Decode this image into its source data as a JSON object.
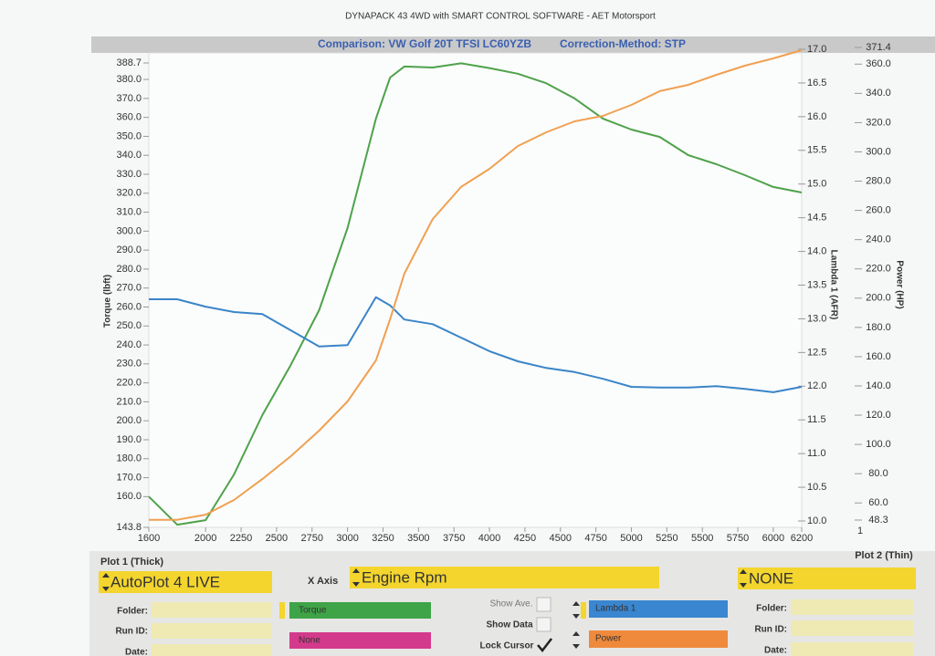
{
  "chart_data": {
    "type": "line",
    "title": "DYNAPACK 43 4WD with SMART CONTROL SOFTWARE - AET Motorsport",
    "subtitle": "Comparison: VW Golf 20T TFSI LC60YZB",
    "correction": "Correction-Method: STP",
    "y_label": "Torque (lbft)",
    "y2_label": "Lambda 1 (AFR)",
    "y3_label": "Power (HP)",
    "corner_label": "1",
    "x": [
      1600,
      1800,
      2000,
      2200,
      2400,
      2600,
      2800,
      3000,
      3200,
      3300,
      3400,
      3600,
      3800,
      4000,
      4200,
      4400,
      4600,
      4800,
      5000,
      5200,
      5400,
      5600,
      5800,
      6000,
      6200
    ],
    "xlim": [
      1600,
      6200
    ],
    "xticks": [
      1600,
      2000,
      2250,
      2500,
      2750,
      3000,
      3250,
      3500,
      3750,
      4000,
      4250,
      4500,
      4750,
      5000,
      5250,
      5500,
      5750,
      6000,
      6200
    ],
    "ylim": [
      143.8,
      388.7
    ],
    "yticks": [
      143.8,
      {
        "value": 160,
        "label": "160.0"
      },
      {
        "value": 170,
        "label": "170.0"
      },
      {
        "value": 180,
        "label": "180.0"
      },
      {
        "value": 190,
        "label": "190.0"
      },
      {
        "value": 200,
        "label": "200.0"
      },
      {
        "value": 210,
        "label": "210.0"
      },
      {
        "value": 220,
        "label": "220.0"
      },
      {
        "value": 230,
        "label": "230.0"
      },
      {
        "value": 240,
        "label": "240.0"
      },
      {
        "value": 250,
        "label": "250.0"
      },
      {
        "value": 260,
        "label": "260.0"
      },
      {
        "value": 270,
        "label": "270.0"
      },
      {
        "value": 280,
        "label": "280.0"
      },
      {
        "value": 290,
        "label": "290.0"
      },
      {
        "value": 300,
        "label": "300.0"
      },
      {
        "value": 310,
        "label": "310.0"
      },
      {
        "value": 320,
        "label": "320.0"
      },
      {
        "value": 330,
        "label": "330.0"
      },
      {
        "value": 340,
        "label": "340.0"
      },
      {
        "value": 350,
        "label": "350.0"
      },
      {
        "value": 360,
        "label": "360.0"
      },
      {
        "value": 370,
        "label": "370.0"
      },
      {
        "value": 380,
        "label": "380.0"
      },
      388.7
    ],
    "y2lim": [
      10,
      17
    ],
    "y2ticks": [
      {
        "value": 10,
        "label": "10.0"
      },
      10.5,
      {
        "value": 11,
        "label": "11.0"
      },
      11.5,
      {
        "value": 12,
        "label": "12.0"
      },
      12.5,
      {
        "value": 13,
        "label": "13.0"
      },
      13.5,
      {
        "value": 14,
        "label": "14.0"
      },
      14.5,
      {
        "value": 15,
        "label": "15.0"
      },
      15.5,
      {
        "value": 16,
        "label": "16.0"
      },
      16.5,
      {
        "value": 17,
        "label": "17.0"
      }
    ],
    "y3lim": [
      48.3,
      371.4
    ],
    "y3ticks": [
      48.3,
      {
        "value": 60,
        "label": "60.0"
      },
      {
        "value": 80,
        "label": "80.0"
      },
      {
        "value": 100,
        "label": "100.0"
      },
      {
        "value": 120,
        "label": "120.0"
      },
      {
        "value": 140,
        "label": "140.0"
      },
      {
        "value": 160,
        "label": "160.0"
      },
      {
        "value": 180,
        "label": "180.0"
      },
      {
        "value": 200,
        "label": "200.0"
      },
      {
        "value": 220,
        "label": "220.0"
      },
      {
        "value": 240,
        "label": "240.0"
      },
      {
        "value": 260,
        "label": "260.0"
      },
      {
        "value": 280,
        "label": "280.0"
      },
      {
        "value": 300,
        "label": "300.0"
      },
      {
        "value": 320,
        "label": "320.0"
      },
      {
        "value": 340,
        "label": "340.0"
      },
      {
        "value": 360,
        "label": "360.0"
      },
      371.4
    ],
    "series": [
      {
        "name": "Torque",
        "color": "#4ea24a",
        "axis": "y",
        "values": [
          160,
          145.2,
          147.6,
          171.7,
          203,
          229.4,
          258.3,
          301.6,
          359.3,
          381,
          386.8,
          386.3,
          388.5,
          386,
          383,
          378,
          370,
          359.3,
          353.6,
          349.7,
          340.1,
          335.3,
          329.5,
          323.3,
          320.4
        ]
      },
      {
        "name": "Lambda 1",
        "color": "#3a85c8",
        "axis": "y2",
        "values": [
          13.29,
          13.29,
          13.18,
          13.1,
          13.07,
          12.83,
          12.59,
          12.61,
          13.32,
          13.2,
          12.99,
          12.92,
          12.72,
          12.52,
          12.37,
          12.27,
          12.21,
          12.11,
          11.99,
          11.98,
          11.98,
          12.0,
          11.96,
          11.91,
          11.99
        ]
      },
      {
        "name": "Power",
        "color": "#f0a050",
        "axis": "y3",
        "values": [
          48.5,
          48.5,
          52,
          62,
          76.3,
          91.9,
          109.4,
          129.4,
          157.4,
          185.5,
          216.7,
          254.1,
          276,
          288.4,
          304,
          313.4,
          320.9,
          324.6,
          332.1,
          341.5,
          345.8,
          352.7,
          358.9,
          363.9,
          369.5
        ]
      }
    ]
  },
  "panel": {
    "plot1_title": "Plot 1 (Thick)",
    "plot1_value": "AutoPlot 4 LIVE",
    "x_axis_label": "X Axis",
    "x_axis_value": "Engine Rpm",
    "plot2_title": "Plot 2 (Thin)",
    "plot2_value": "NONE",
    "folder": "Folder:",
    "run_id": "Run ID:",
    "date": "Date:",
    "none_channel": "None",
    "show_ave": "Show Ave.",
    "show_data": "Show Data",
    "lock_cursor": "Lock Cursor"
  }
}
